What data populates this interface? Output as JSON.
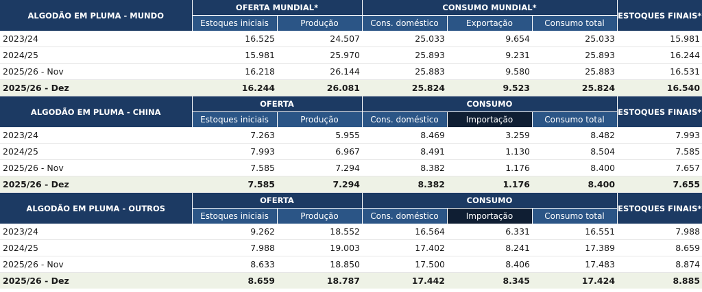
{
  "sections": [
    {
      "title": "ALGODÃO EM PLUMA - MUNDO",
      "group1": "OFERTA MUNDIAL*",
      "group2": "CONSUMO MUNDIAL*",
      "final": "ESTOQUES FINAIS*",
      "cols": [
        "Estoques iniciais",
        "Produção",
        "Cons. doméstico",
        "Exportação",
        "Consumo total"
      ],
      "rows": [
        {
          "label": "2023/24",
          "v": [
            "16.525",
            "24.507",
            "25.033",
            "9.654",
            "25.033",
            "15.981"
          ]
        },
        {
          "label": "2024/25",
          "v": [
            "15.981",
            "25.970",
            "25.893",
            "9.231",
            "25.893",
            "16.244"
          ]
        },
        {
          "label": "2025/26 - Nov",
          "v": [
            "16.218",
            "26.144",
            "25.883",
            "9.580",
            "25.883",
            "16.531"
          ]
        },
        {
          "label": "2025/26 - Dez",
          "v": [
            "16.244",
            "26.081",
            "25.824",
            "9.523",
            "25.824",
            "16.540"
          ]
        }
      ]
    },
    {
      "title": "ALGODÃO EM PLUMA - CHINA",
      "group1": "OFERTA",
      "group2": "CONSUMO",
      "final": "ESTOQUES FINAIS*",
      "cols": [
        "Estoques iniciais",
        "Produção",
        "Cons. doméstico",
        "Importação",
        "Consumo total"
      ],
      "rows": [
        {
          "label": "2023/24",
          "v": [
            "7.263",
            "5.955",
            "8.469",
            "3.259",
            "8.482",
            "7.993"
          ]
        },
        {
          "label": "2024/25",
          "v": [
            "7.993",
            "6.967",
            "8.491",
            "1.130",
            "8.504",
            "7.585"
          ]
        },
        {
          "label": "2025/26 - Nov",
          "v": [
            "7.585",
            "7.294",
            "8.382",
            "1.176",
            "8.400",
            "7.657"
          ]
        },
        {
          "label": "2025/26 - Dez",
          "v": [
            "7.585",
            "7.294",
            "8.382",
            "1.176",
            "8.400",
            "7.655"
          ]
        }
      ]
    },
    {
      "title": "ALGODÃO EM PLUMA - OUTROS",
      "group1": "OFERTA",
      "group2": "CONSUMO",
      "final": "ESTOQUES FINAIS*",
      "cols": [
        "Estoques iniciais",
        "Produção",
        "Cons. doméstico",
        "Importação",
        "Consumo total"
      ],
      "rows": [
        {
          "label": "2023/24",
          "v": [
            "9.262",
            "18.552",
            "16.564",
            "6.331",
            "16.551",
            "7.988"
          ]
        },
        {
          "label": "2024/25",
          "v": [
            "7.988",
            "19.003",
            "17.402",
            "8.241",
            "17.389",
            "8.659"
          ]
        },
        {
          "label": "2025/26 - Nov",
          "v": [
            "8.633",
            "18.850",
            "17.500",
            "8.406",
            "17.483",
            "8.874"
          ]
        },
        {
          "label": "2025/26 - Dez",
          "v": [
            "8.659",
            "18.787",
            "17.442",
            "8.345",
            "17.424",
            "8.885"
          ]
        }
      ]
    }
  ]
}
